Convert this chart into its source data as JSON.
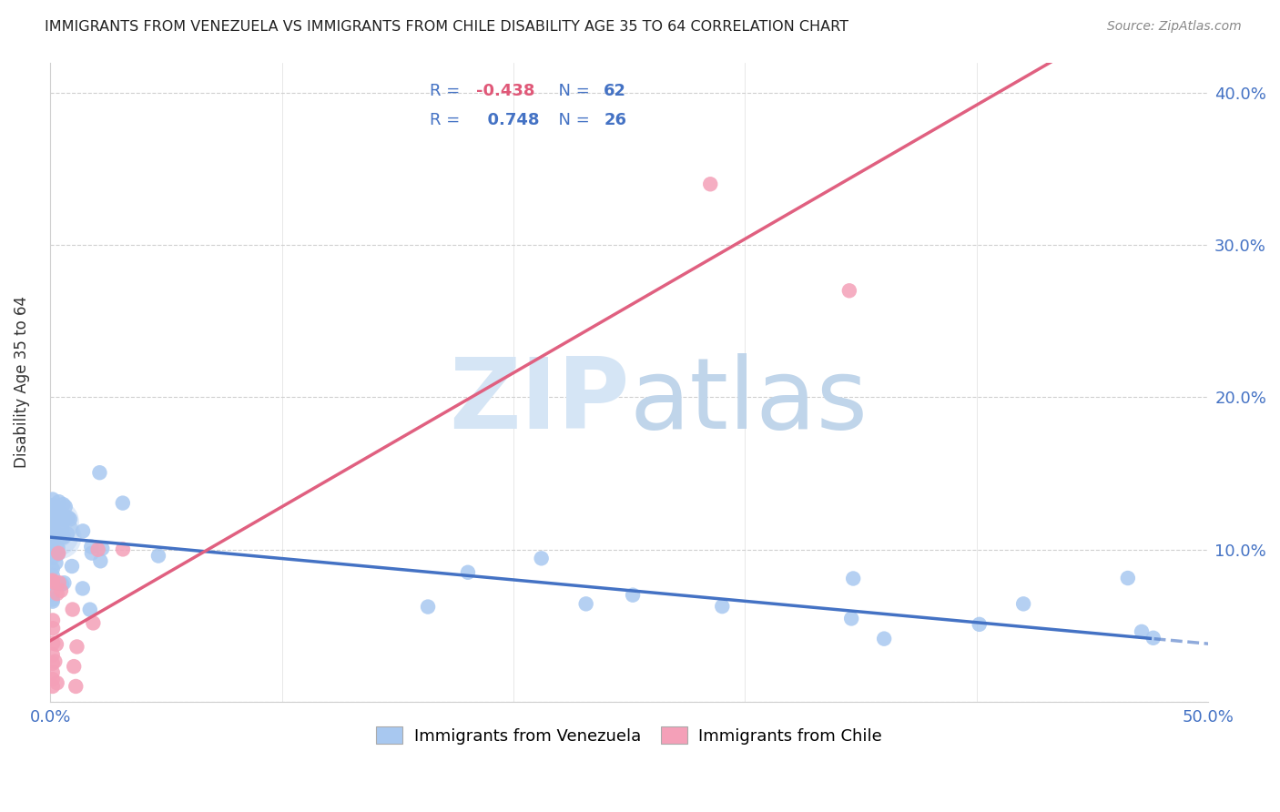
{
  "title": "IMMIGRANTS FROM VENEZUELA VS IMMIGRANTS FROM CHILE DISABILITY AGE 35 TO 64 CORRELATION CHART",
  "source": "Source: ZipAtlas.com",
  "ylabel": "Disability Age 35 to 64",
  "xlim": [
    0.0,
    0.5
  ],
  "ylim": [
    0.0,
    0.42
  ],
  "venezuela_R": -0.438,
  "venezuela_N": 62,
  "chile_R": 0.748,
  "chile_N": 26,
  "venezuela_color": "#A8C8F0",
  "chile_color": "#F4A0B8",
  "venezuela_line_color": "#4472C4",
  "chile_line_color": "#E06080",
  "background_color": "#FFFFFF",
  "axis_color": "#4472C4",
  "grid_color": "#D0D0D0",
  "title_color": "#222222",
  "source_color": "#888888",
  "legend_text_color": "#4472C4",
  "legend_r_neg_color": "#E05878",
  "watermark_zip_color": "#D5E5F5",
  "watermark_atlas_color": "#C0D5EA",
  "ven_intercept": 0.108,
  "ven_slope": -0.14,
  "chile_intercept": 0.04,
  "chile_slope": 0.88
}
